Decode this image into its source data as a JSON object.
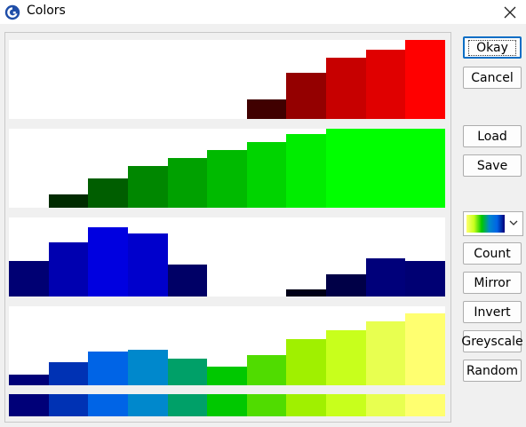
{
  "window": {
    "title": "Colors"
  },
  "buttons": {
    "okay": "Okay",
    "cancel": "Cancel",
    "load": "Load",
    "save": "Save",
    "count": "Count",
    "mirror": "Mirror",
    "invert": "Invert",
    "greyscale": "Greyscale",
    "random": "Random"
  },
  "icons": {
    "app": "app-logo-icon",
    "close": "close-icon",
    "dropdown": "chevron-down-icon"
  },
  "colors": {
    "accent": "#0b6ec5",
    "palette": [
      "#000078",
      "#0032b4",
      "#0064e6",
      "#0088cc",
      "#00a068",
      "#00c800",
      "#50dc00",
      "#a0f000",
      "#c8ff1c",
      "#e8ff50",
      "#ffff70"
    ]
  },
  "channels": {
    "red": [
      0,
      0,
      0,
      0,
      0,
      0,
      0.25,
      0.58,
      0.78,
      0.88,
      1.0
    ],
    "green": [
      0,
      0.17,
      0.37,
      0.53,
      0.63,
      0.73,
      0.83,
      0.93,
      1.0,
      1.0,
      1.0
    ],
    "blue": [
      0.45,
      0.69,
      0.88,
      0.8,
      0.4,
      0,
      0,
      0.09,
      0.28,
      0.48,
      0.45
    ],
    "brightness": [
      0.14,
      0.29,
      0.43,
      0.45,
      0.34,
      0.24,
      0.38,
      0.59,
      0.7,
      0.81,
      0.91
    ]
  }
}
